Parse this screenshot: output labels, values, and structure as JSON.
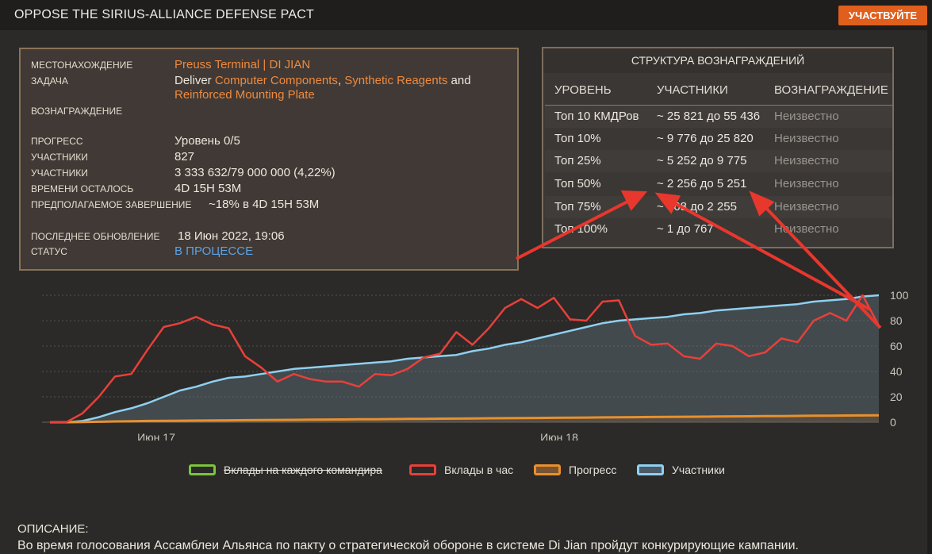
{
  "header": {
    "title": "OPPOSE THE SIRIUS-ALLIANCE DEFENSE PACT",
    "join_label": "УЧАСТВУЙТЕ",
    "accent": "#e05f1d"
  },
  "info": {
    "location_label": "МЕСТОНАХОЖДЕНИЕ",
    "location_value": "Preuss Terminal | DI JIAN",
    "task_label": "ЗАДАЧА",
    "task_prefix": "Deliver ",
    "task_item1": "Computer Components",
    "task_sep1": ", ",
    "task_item2": "Synthetic Reagents",
    "task_sep2": " and",
    "task_item3": "Reinforced Mounting Plate",
    "reward_label": "ВОЗНАГРАЖДЕНИЕ",
    "progress_label": "ПРОГРЕСС",
    "progress_value": "Уровень 0/5",
    "participants_label": "УЧАСТНИКИ",
    "participants_value": "827",
    "contribution_label": "УЧАСТНИКИ",
    "contribution_value": "3 333 632/79 000 000 (4,22%)",
    "time_left_label": "ВРЕМЕНИ ОСТАЛОСЬ",
    "time_left_value": "4D 15H 53M",
    "estimate_label": "ПРЕДПОЛАГАЕМОЕ ЗАВЕРШЕНИЕ",
    "estimate_value": "~18% в 4D 15H 53M",
    "updated_label": "ПОСЛЕДНЕЕ ОБНОВЛЕНИЕ",
    "updated_value": "18 Июн 2022, 19:06",
    "status_label": "СТАТУС",
    "status_value": "В ПРОЦЕССЕ"
  },
  "rewards": {
    "title": "СТРУКТУРА ВОЗНАГРАЖДЕНИЙ",
    "headers": [
      "УРОВЕНЬ",
      "УЧАСТНИКИ",
      "ВОЗНАГРАЖДЕНИЕ"
    ],
    "rows": [
      {
        "tier": "Топ 10 КМДРов",
        "range": "~ 25 821 до 55 436",
        "reward": "Неизвестно"
      },
      {
        "tier": "Топ 10%",
        "range": "~ 9 776 до 25 820",
        "reward": "Неизвестно"
      },
      {
        "tier": "Топ 25%",
        "range": "~ 5 252 до 9 775",
        "reward": "Неизвестно"
      },
      {
        "tier": "Топ 50%",
        "range": "~ 2 256 до 5 251",
        "reward": "Неизвестно"
      },
      {
        "tier": "Топ 75%",
        "range": "~ 768 до 2 255",
        "reward": "Неизвестно"
      },
      {
        "tier": "Топ 100%",
        "range": "~ 1 до 767",
        "reward": "Неизвестно"
      }
    ]
  },
  "chart_data": {
    "type": "line",
    "x_ticks": [
      "Июн 17",
      "Июн 18"
    ],
    "ylim": [
      0,
      100
    ],
    "y_ticks": [
      0,
      20,
      40,
      60,
      80,
      100
    ],
    "grid": true,
    "legend_position": "bottom",
    "series": [
      {
        "name": "Вклады на каждого командира",
        "color": "#7cc43a",
        "hidden": true,
        "values": []
      },
      {
        "name": "Вклады в час",
        "color": "#e8403a",
        "values": [
          0,
          0,
          7,
          20,
          36,
          38,
          57,
          75,
          78,
          83,
          77,
          74,
          52,
          43,
          32,
          38,
          34,
          32,
          32,
          28,
          38,
          37,
          42,
          51,
          54,
          71,
          61,
          74,
          90,
          97,
          90,
          98,
          81,
          80,
          95,
          96,
          68,
          61,
          62,
          52,
          50,
          62,
          60,
          52,
          55,
          66,
          63,
          80,
          86,
          80,
          100,
          76
        ]
      },
      {
        "name": "Прогресс",
        "color": "#e8902e",
        "values": [
          0,
          0,
          0.2,
          0.4,
          0.6,
          0.8,
          1,
          1.1,
          1.2,
          1.3,
          1.4,
          1.5,
          1.6,
          1.7,
          1.8,
          1.9,
          2,
          2.1,
          2.2,
          2.3,
          2.4,
          2.5,
          2.6,
          2.7,
          2.8,
          2.9,
          3,
          3.1,
          3.2,
          3.3,
          3.4,
          3.5,
          3.6,
          3.7,
          3.8,
          3.9,
          4,
          4.1,
          4.2,
          4.3,
          4.4,
          4.5,
          4.6,
          4.7,
          4.8,
          4.9,
          5,
          5.1,
          5.2,
          5.3,
          5.4,
          5.5
        ]
      },
      {
        "name": "Участники",
        "color": "#8fd0f0",
        "values": [
          0,
          0,
          1,
          4,
          8,
          11,
          15,
          20,
          25,
          28,
          32,
          35,
          36,
          38,
          40,
          42,
          43,
          44,
          45,
          46,
          47,
          48,
          50,
          51,
          52,
          53,
          56,
          58,
          61,
          63,
          66,
          69,
          72,
          75,
          78,
          80,
          81,
          82,
          83,
          85,
          86,
          88,
          89,
          90,
          91,
          92,
          93,
          95,
          96,
          97,
          99,
          100
        ]
      }
    ]
  },
  "description": {
    "heading": "ОПИСАНИЕ:",
    "text": "Во время голосования Ассамблеи Альянса по пакту о стратегической обороне в системе Di Jian пройдут конкурирующие кампании."
  }
}
